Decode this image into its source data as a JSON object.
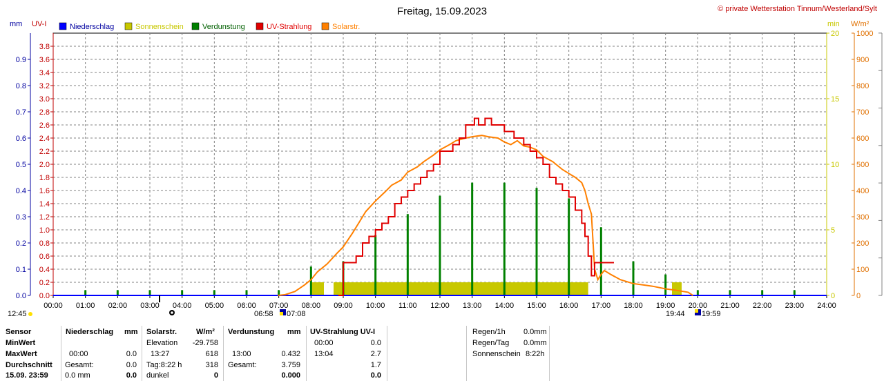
{
  "header": {
    "title": "Freitag, 15.09.2023",
    "credit": "© private Wetterstation Tinnum/Westerland/Sylt"
  },
  "colors": {
    "niederschlag": "#0000ff",
    "sonnenschein": "#c8c800",
    "verdunstung": "#008000",
    "uv": "#e00000",
    "solar": "#ff8000",
    "axis_left_mm": "#0000a0",
    "axis_left_uv": "#c00000",
    "axis_right_min": "#c8c800",
    "axis_right_wm2": "#e07000"
  },
  "chart_data": {
    "type": "line",
    "axes": {
      "mm": {
        "label": "mm",
        "ticks": [
          "0.0",
          "0.1",
          "0.2",
          "0.3",
          "0.4",
          "0.5",
          "0.6",
          "0.7",
          "0.8",
          "0.9"
        ],
        "range": [
          0,
          1.0
        ]
      },
      "uv": {
        "label": "UV-I",
        "ticks": [
          "0.0",
          "0.2",
          "0.4",
          "0.6",
          "0.8",
          "1.0",
          "1.2",
          "1.4",
          "1.6",
          "1.8",
          "2.0",
          "2.2",
          "2.4",
          "2.6",
          "2.8",
          "3.0",
          "3.2",
          "3.4",
          "3.6",
          "3.8"
        ],
        "range": [
          0,
          4.0
        ]
      },
      "min": {
        "label": "min",
        "ticks": [
          "0",
          "5",
          "10",
          "15",
          "20"
        ],
        "range": [
          0,
          20
        ]
      },
      "wm2": {
        "label": "W/m²",
        "ticks": [
          "0",
          "100",
          "200",
          "300",
          "400",
          "500",
          "600",
          "700",
          "800",
          "900",
          "1000"
        ],
        "range": [
          0,
          1000
        ]
      },
      "x": {
        "ticks": [
          "00:00",
          "01:00",
          "02:00",
          "03:00",
          "04:00",
          "05:00",
          "06:00",
          "07:00",
          "08:00",
          "09:00",
          "10:00",
          "11:00",
          "12:00",
          "13:00",
          "14:00",
          "15:00",
          "16:00",
          "17:00",
          "18:00",
          "19:00",
          "20:00",
          "21:00",
          "22:00",
          "23:00",
          "24:00"
        ],
        "range": [
          0,
          24
        ]
      }
    },
    "legend": [
      "Niederschlag",
      "Sonnenschein",
      "Verdunstung",
      "UV-Strahlung",
      "Solarstr."
    ],
    "grid": true,
    "series": [
      {
        "name": "Solarstr.",
        "axis": "wm2",
        "x": [
          6.97,
          7.2,
          7.5,
          7.8,
          8.0,
          8.2,
          8.5,
          8.8,
          9.0,
          9.3,
          9.5,
          9.7,
          10.0,
          10.3,
          10.5,
          10.8,
          11.0,
          11.3,
          11.5,
          11.8,
          12.0,
          12.3,
          12.5,
          12.8,
          13.0,
          13.3,
          13.5,
          13.8,
          14.0,
          14.2,
          14.4,
          14.5,
          14.6,
          14.8,
          15.0,
          15.2,
          15.5,
          15.8,
          16.0,
          16.2,
          16.4,
          16.5,
          16.6,
          16.7,
          16.8,
          16.9,
          17.0,
          17.1,
          17.3,
          17.6,
          18.0,
          18.3,
          18.6,
          19.0,
          19.3,
          19.7,
          19.85
        ],
        "y": [
          0,
          3,
          15,
          40,
          60,
          90,
          120,
          160,
          185,
          240,
          280,
          320,
          360,
          395,
          420,
          440,
          470,
          490,
          510,
          535,
          555,
          575,
          590,
          600,
          605,
          610,
          605,
          600,
          585,
          575,
          590,
          580,
          570,
          565,
          555,
          530,
          510,
          480,
          465,
          450,
          430,
          400,
          350,
          310,
          100,
          60,
          80,
          95,
          80,
          60,
          45,
          40,
          35,
          25,
          20,
          12,
          0
        ]
      },
      {
        "name": "UV-Strahlung",
        "axis": "uv",
        "x": [
          8.85,
          9.0,
          9.2,
          9.4,
          9.6,
          9.8,
          10.0,
          10.2,
          10.4,
          10.6,
          10.8,
          11.0,
          11.2,
          11.4,
          11.6,
          11.8,
          12.0,
          12.2,
          12.4,
          12.6,
          12.8,
          13.0,
          13.07,
          13.2,
          13.4,
          13.6,
          13.8,
          14.0,
          14.3,
          14.6,
          14.8,
          15.0,
          15.2,
          15.4,
          15.6,
          15.8,
          16.0,
          16.2,
          16.4,
          16.5,
          16.6,
          16.7,
          16.8,
          16.9,
          17.1,
          17.4
        ],
        "y": [
          0,
          0.5,
          0.5,
          0.6,
          0.8,
          0.9,
          1.0,
          1.1,
          1.2,
          1.4,
          1.5,
          1.6,
          1.7,
          1.8,
          1.9,
          2.0,
          2.2,
          2.2,
          2.3,
          2.4,
          2.6,
          2.6,
          2.7,
          2.6,
          2.7,
          2.6,
          2.6,
          2.5,
          2.4,
          2.3,
          2.2,
          2.1,
          2.0,
          1.8,
          1.7,
          1.6,
          1.5,
          1.3,
          1.1,
          0.9,
          0.6,
          0.3,
          0.5,
          0.5,
          0.5,
          0.5
        ]
      },
      {
        "name": "Verdunstung",
        "axis": "mm",
        "x": [
          1,
          2,
          3,
          4,
          5,
          6,
          7,
          8,
          9,
          10,
          11,
          12,
          13,
          14,
          15,
          16,
          17,
          18,
          19,
          20,
          21,
          22,
          23
        ],
        "y": [
          0.02,
          0.02,
          0.02,
          0.02,
          0.02,
          0.02,
          0.02,
          0.11,
          0.13,
          0.23,
          0.31,
          0.38,
          0.43,
          0.43,
          0.41,
          0.37,
          0.26,
          0.13,
          0.08,
          0.02,
          0.02,
          0.02,
          0.02
        ]
      },
      {
        "name": "Sonnenschein",
        "axis": "min",
        "blocks": [
          [
            8.0,
            8.4
          ],
          [
            8.7,
            16.6
          ],
          [
            19.2,
            19.5
          ]
        ],
        "level": 1
      }
    ]
  },
  "markers": {
    "left_time": "12:45",
    "sunrise_time": "06:58",
    "sunrise_time2": "07:08",
    "sunset_time": "19:44",
    "sunset_time2": "19:59"
  },
  "stats": {
    "row_labels": [
      "Sensor",
      "MinWert",
      "MaxWert",
      "Durchschnitt",
      "15.09. 23:59"
    ],
    "niederschlag": {
      "head": "Niederschlag",
      "unit": "mm",
      "max_time": "00:00",
      "max_val": "0.0",
      "avg_label": "Gesamt:",
      "avg_val": "0.0",
      "last_val": "0.0 mm",
      "last_bold": "0.0"
    },
    "solar": {
      "head": "Solarstr.",
      "unit": "W/m²",
      "min_label": "Elevation",
      "min_val": "-29.758",
      "max_time": "13:27",
      "max_val": "618",
      "avg_label": "Tag:8:22 h",
      "avg_val": "318",
      "last_label": "dunkel",
      "last_val": "0"
    },
    "verdunstung": {
      "head": "Verdunstung",
      "unit": "mm",
      "max_time": "13:00",
      "max_val": "0.432",
      "avg_label": "Gesamt:",
      "avg_val": "3.759",
      "last_val": "0.000"
    },
    "uv": {
      "head": "UV-Strahlung UV-I",
      "min_time": "00:00",
      "min_val": "0.0",
      "max_time": "13:04",
      "max_val": "2.7",
      "avg_val": "1.7",
      "last_val": "0.0"
    },
    "extra": [
      {
        "label": "Regen/1h",
        "value": "0.0mm"
      },
      {
        "label": "Regen/Tag",
        "value": "0.0mm"
      },
      {
        "label": "Sonnenschein",
        "value": "8:22h"
      }
    ]
  }
}
